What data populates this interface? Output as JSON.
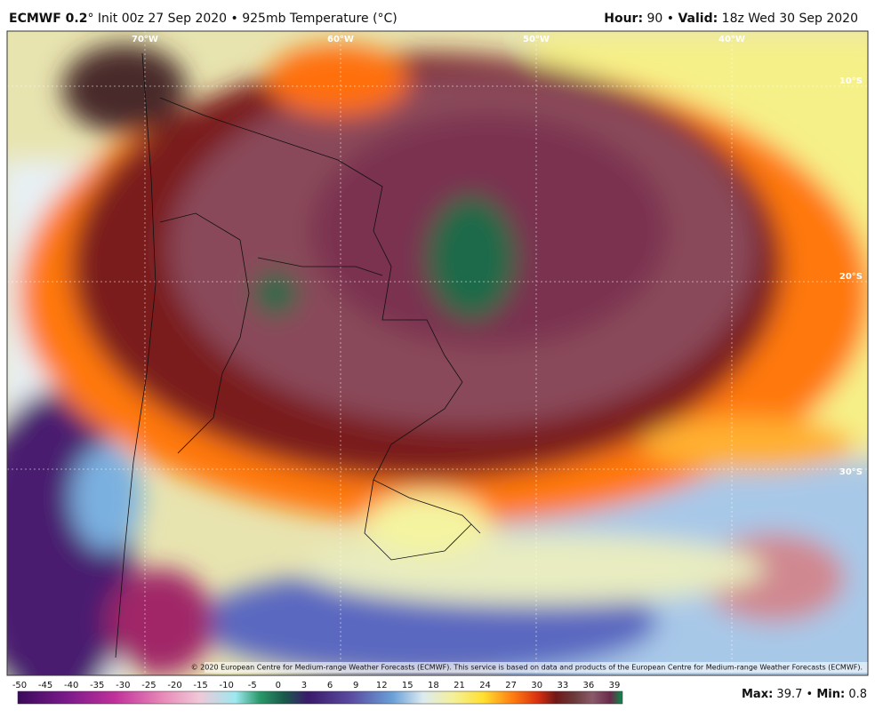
{
  "header": {
    "model": "ECMWF 0.2",
    "details": "° Init 00z 27 Sep 2020 • 925mb Temperature (°C)",
    "hour_label": "Hour:",
    "hour": " 90 • ",
    "valid_label": "Valid:",
    "valid": " 18z Wed 30 Sep 2020"
  },
  "map": {
    "longitudes": [
      "70°W",
      "60°W",
      "50°W",
      "40°W"
    ],
    "latitudes": [
      "10°S",
      "20°S",
      "30°S"
    ],
    "copyright": "© 2020 European Centre for Medium-range Weather Forecasts (ECMWF). This service is based on data and products of the European Centre for Medium-range Weather Forecasts (ECMWF)."
  },
  "colorbar": {
    "ticks": [
      -50,
      -45,
      -40,
      -35,
      -30,
      -25,
      -20,
      -15,
      -10,
      -5,
      0,
      3,
      6,
      9,
      12,
      15,
      18,
      21,
      24,
      27,
      30,
      33,
      36,
      39
    ]
  },
  "stats": {
    "max_label": "Max:",
    "max": 39.7,
    "separator": " • ",
    "min_label": "Min:",
    "min": 0.8
  }
}
